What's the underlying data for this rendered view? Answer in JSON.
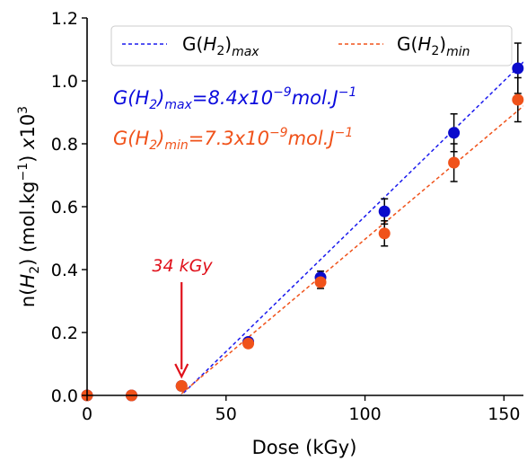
{
  "chart_data": {
    "type": "scatter",
    "xlabel": "Dose (kGy)",
    "ylabel": "n(H₂) (mol.kg⁻¹) x10³",
    "xlim": [
      0,
      157
    ],
    "ylim": [
      0,
      1.2
    ],
    "x_ticks": [
      0,
      50,
      100,
      150
    ],
    "y_ticks": [
      0.0,
      0.2,
      0.4,
      0.6,
      0.8,
      1.0,
      1.2
    ],
    "x_tick_labels": [
      "0",
      "50",
      "100",
      "150"
    ],
    "y_tick_labels": [
      "0.0",
      "0.2",
      "0.4",
      "0.6",
      "0.8",
      "1.0",
      "1.2"
    ],
    "legend_placement": "top-right",
    "legend": [
      {
        "label": "G(H₂)max",
        "main": "G(",
        "sub1": "2",
        "mid": ")",
        "sub2": "max"
      },
      {
        "label": "G(H₂)min",
        "main": "G(",
        "sub1": "2",
        "mid": ")",
        "sub2": "min"
      }
    ],
    "series": [
      {
        "name": "G(H₂)max",
        "color": "#0b0bcc",
        "x": [
          0,
          16,
          34,
          58,
          84,
          107,
          132,
          155
        ],
        "y": [
          0.0,
          0.0,
          0.03,
          0.17,
          0.375,
          0.585,
          0.835,
          1.04
        ],
        "yerr": [
          0,
          0,
          0,
          0.01,
          0.02,
          0.04,
          0.06,
          0.08
        ]
      },
      {
        "name": "G(H₂)min",
        "color": "#f0521a",
        "x": [
          0,
          16,
          34,
          58,
          84,
          107,
          132,
          155
        ],
        "y": [
          0.0,
          0.0,
          0.03,
          0.165,
          0.36,
          0.515,
          0.74,
          0.94
        ],
        "yerr": [
          0,
          0,
          0,
          0.01,
          0.02,
          0.04,
          0.06,
          0.07
        ]
      }
    ],
    "fit_lines": [
      {
        "color": "#1a1aee",
        "x": [
          31.5,
          157
        ],
        "y": [
          -0.02,
          1.06
        ]
      },
      {
        "color": "#f0521a",
        "x": [
          30.5,
          157
        ],
        "y": [
          -0.02,
          0.92
        ]
      }
    ],
    "annotations": {
      "gmax": {
        "prefix": "G(H",
        "sub1": "2",
        "mid": ")",
        "sub2": "max",
        "value": "=8.4x10",
        "exp": "−9",
        "unit": "mol.J",
        "unit_exp": "−1",
        "color": "#0b0bdd"
      },
      "gmin": {
        "prefix": "G(H",
        "sub1": "2",
        "mid": ")",
        "sub2": "min",
        "value": "=7.3x10",
        "exp": "−9",
        "unit": "mol.J",
        "unit_exp": "−1",
        "color": "#f0521a"
      },
      "threshold": {
        "text": "34 kGy",
        "color": "#e0101a",
        "x": 34,
        "y_from": 0.36,
        "y_to": 0.06
      }
    }
  }
}
